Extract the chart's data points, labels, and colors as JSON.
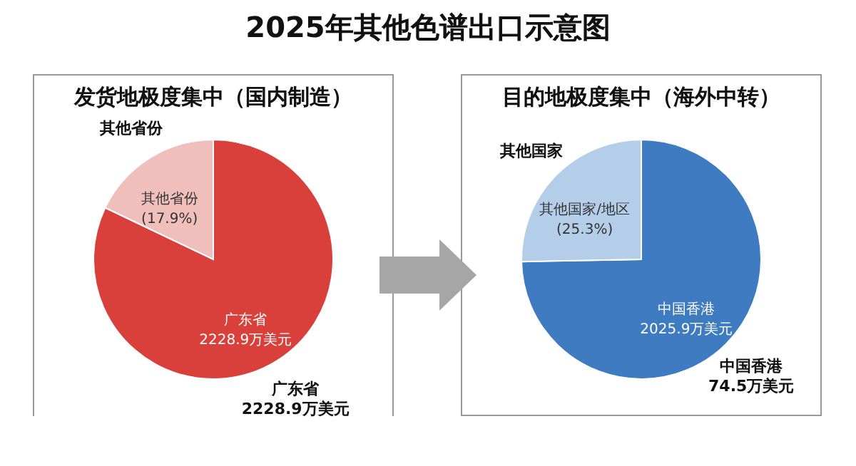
{
  "chart_data": [
    {
      "type": "pie",
      "title": "2025年其他色谱出口示意图",
      "subtitle": "发货地极度集中（国内制造）",
      "categories": [
        "广东省",
        "其他省份"
      ],
      "values": [
        82.1,
        17.9
      ],
      "colors": [
        "#d9403b",
        "#f0bfbc"
      ],
      "value_labels": [
        "广东省\n2228.9万美元",
        "其他省份\n(17.9%)"
      ],
      "annotations": [
        {
          "text": "2228.9万美元",
          "x": "广东省"
        }
      ]
    },
    {
      "type": "pie",
      "title": "目的地极度集中（海外中转）",
      "categories": [
        "中国香港",
        "其他国家"
      ],
      "values": [
        74.7,
        25.3
      ],
      "colors": [
        "#3f7bc0",
        "#b4cde9"
      ],
      "value_labels": [
        "中国香港\n2025.9万美元",
        "其他国家/地区\n(25.3%)"
      ],
      "annotations": [
        {
          "text": "74.5万美元",
          "x": "中国香港"
        }
      ]
    }
  ]
}
